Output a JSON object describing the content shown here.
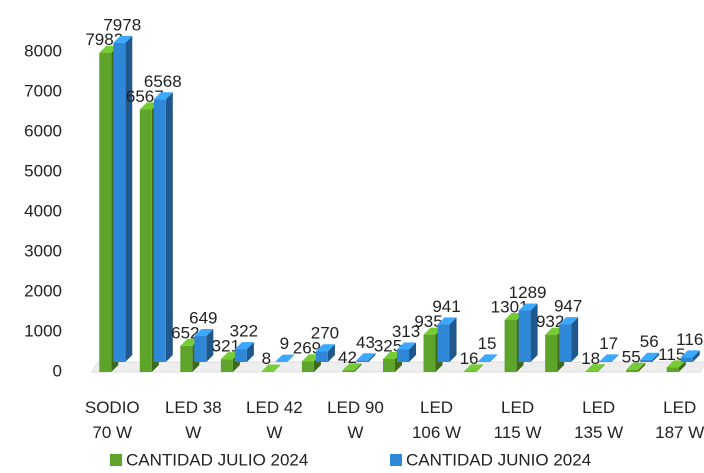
{
  "chart_data": {
    "type": "bar3d",
    "categories": [
      "SODIO 70 W",
      null,
      "LED 38 W",
      null,
      "LED 42 W",
      null,
      "LED 90 W",
      null,
      "LED 106 W",
      null,
      "LED 115 W",
      null,
      "LED 135 W",
      null,
      "LED 187 W"
    ],
    "series": [
      {
        "name": "CANTIDAD JULIO 2024",
        "color": "#5ea32a",
        "values": [
          7982,
          6567,
          652,
          321,
          8,
          269,
          42,
          325,
          935,
          16,
          1301,
          932,
          18,
          55,
          115
        ]
      },
      {
        "name": "CANTIDAD JUNIO 2024",
        "color": "#2f87d8",
        "values": [
          7978,
          6568,
          649,
          322,
          9,
          270,
          43,
          313,
          941,
          15,
          1289,
          947,
          17,
          56,
          116
        ]
      }
    ],
    "ylim": [
      0,
      8000
    ],
    "yticks": [
      0,
      1000,
      2000,
      3000,
      4000,
      5000,
      6000,
      7000,
      8000
    ],
    "legend": "bottom"
  }
}
